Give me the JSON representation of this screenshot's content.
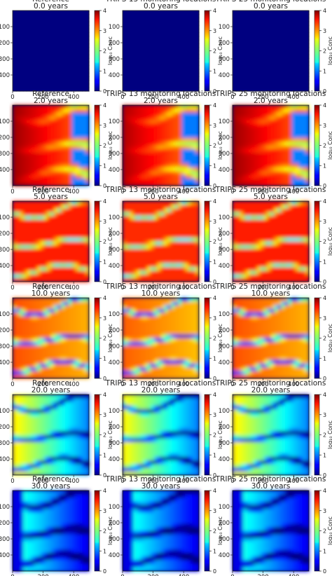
{
  "figure": {
    "columns": [
      {
        "id": "reference",
        "title": "Reference"
      },
      {
        "id": "trips13",
        "title": "TRIPS 13 monitoring locations"
      },
      {
        "id": "trips25",
        "title": "TRIPS 25 monitoring locations"
      }
    ],
    "rows": [
      {
        "time": "0.0 years"
      },
      {
        "time": "2.0 years"
      },
      {
        "time": "5.0 years"
      },
      {
        "time": "10.0 years"
      },
      {
        "time": "20.0 years"
      },
      {
        "time": "30.0 years"
      }
    ],
    "colorbar": {
      "label": "log₁₀ Conc",
      "colormap": "jet",
      "min": 0,
      "max": 4,
      "ticks": [
        "0",
        "1",
        "2",
        "3",
        "4"
      ]
    }
  },
  "chart_data": {
    "type": "heatmap",
    "panel_grid": [
      6,
      3
    ],
    "x_axis": {
      "min": 0,
      "max": 500,
      "ticks": [
        "0",
        "200",
        "400"
      ]
    },
    "y_axis": {
      "min": 0,
      "max": 500,
      "inverted": true,
      "ticks": [
        "100",
        "200",
        "300",
        "400"
      ]
    },
    "colormap": "jet",
    "value_range": [
      0,
      4
    ],
    "notes_visible": "Concentration plumes spreading from left edge sources along three high-permeability channels"
  }
}
